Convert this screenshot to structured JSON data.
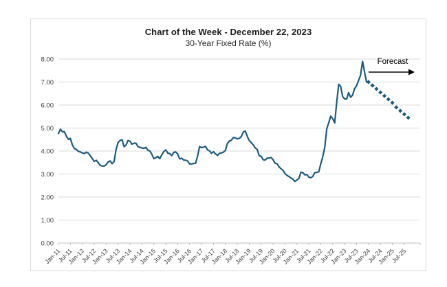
{
  "annotations": {
    "forecast_label": "Forecast"
  },
  "colors": {
    "line": "#1B5A7D",
    "forecast": "#1B5A7D",
    "grid": "#D9D9D9",
    "axis": "#BFBFBF",
    "tick_text": "#3B3B3B",
    "annotation_text": "#000000",
    "border": "#D9D9D9"
  },
  "chart_data": {
    "type": "line",
    "title": "Chart of the Week - December 22, 2023",
    "subtitle": "30-Year Fixed Rate (%)",
    "xlabel": "",
    "ylabel": "",
    "ylim": [
      0,
      8
    ],
    "grid": "horizontal",
    "legend": "none",
    "y_ticks": [
      {
        "value": 0,
        "label": "0.00"
      },
      {
        "value": 1,
        "label": "1.00"
      },
      {
        "value": 2,
        "label": "2.00"
      },
      {
        "value": 3,
        "label": "3.00"
      },
      {
        "value": 4,
        "label": "4.00"
      },
      {
        "value": 5,
        "label": "5.00"
      },
      {
        "value": 6,
        "label": "6.00"
      },
      {
        "value": 7,
        "label": "7.00"
      },
      {
        "value": 8,
        "label": "8.00"
      }
    ],
    "x_tick_interval_months": 6,
    "x_tick_labels": [
      "Jan-11",
      "Jul-11",
      "Jan-12",
      "Jul-12",
      "Jan-13",
      "Jul-13",
      "Jan-14",
      "Jul-14",
      "Jan-15",
      "Jul-15",
      "Jan-16",
      "Jul-16",
      "Jan-17",
      "Jul-17",
      "Jan-18",
      "Jul-18",
      "Jan-19",
      "Jul-19",
      "Jan-20",
      "Jul-20",
      "Jan-21",
      "Jul-21",
      "Jan-22",
      "Jul-22",
      "Jan-23",
      "Jul-23",
      "Jan-24",
      "Jul-24",
      "Jan-25",
      "Jul-25"
    ],
    "series": [
      {
        "name": "30-Year Fixed Rate (historical)",
        "style": "solid",
        "start_month_index": 0,
        "step_months": 1,
        "values": [
          4.76,
          4.95,
          4.84,
          4.84,
          4.64,
          4.51,
          4.55,
          4.27,
          4.11,
          4.07,
          3.99,
          3.96,
          3.92,
          3.89,
          3.95,
          3.91,
          3.8,
          3.68,
          3.55,
          3.6,
          3.5,
          3.38,
          3.35,
          3.35,
          3.41,
          3.53,
          3.57,
          3.45,
          3.54,
          4.07,
          4.37,
          4.46,
          4.49,
          4.19,
          4.26,
          4.46,
          4.43,
          4.3,
          4.34,
          4.34,
          4.19,
          4.16,
          4.13,
          4.12,
          4.16,
          4.04,
          4.0,
          3.86,
          3.67,
          3.71,
          3.77,
          3.67,
          3.84,
          3.98,
          4.05,
          3.91,
          3.89,
          3.8,
          3.94,
          3.96,
          3.87,
          3.66,
          3.69,
          3.61,
          3.6,
          3.57,
          3.44,
          3.44,
          3.46,
          3.47,
          3.77,
          4.2,
          4.15,
          4.17,
          4.2,
          4.05,
          4.01,
          3.9,
          3.97,
          3.88,
          3.81,
          3.9,
          3.92,
          3.95,
          4.03,
          4.33,
          4.44,
          4.47,
          4.59,
          4.57,
          4.53,
          4.55,
          4.63,
          4.83,
          4.87,
          4.64,
          4.46,
          4.37,
          4.27,
          4.14,
          4.07,
          3.8,
          3.77,
          3.62,
          3.61,
          3.69,
          3.7,
          3.72,
          3.62,
          3.47,
          3.45,
          3.31,
          3.23,
          3.16,
          3.02,
          2.94,
          2.89,
          2.83,
          2.77,
          2.68,
          2.74,
          2.81,
          3.08,
          3.06,
          2.96,
          2.98,
          2.87,
          2.84,
          2.9,
          3.07,
          3.07,
          3.1,
          3.45,
          3.76,
          4.17,
          4.98,
          5.23,
          5.52,
          5.41,
          5.22,
          6.11,
          6.9,
          6.81,
          6.36,
          6.27,
          6.26,
          6.54,
          6.34,
          6.43,
          6.71,
          6.84,
          7.07,
          7.3,
          7.9,
          7.44,
          7.0
        ]
      },
      {
        "name": "Forecast",
        "style": "dotted-diamonds",
        "start_month_index": 156,
        "step_months": 2,
        "values": [
          7.0,
          6.85,
          6.7,
          6.55,
          6.4,
          6.25,
          6.1,
          5.9,
          5.75,
          5.6,
          5.45
        ]
      }
    ]
  }
}
